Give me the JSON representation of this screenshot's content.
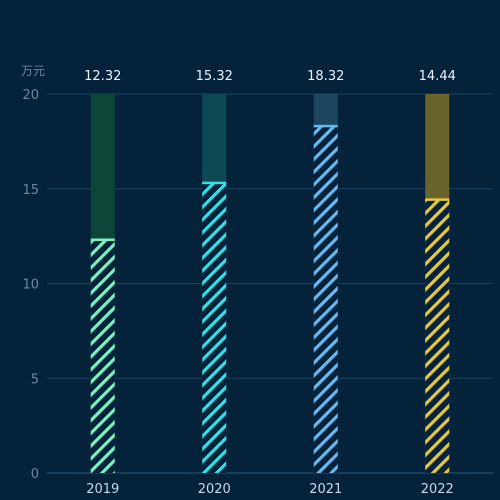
{
  "chart_data": {
    "type": "bar",
    "title": "",
    "xlabel": "",
    "ylabel": "万元",
    "categories": [
      "2019",
      "2020",
      "2021",
      "2022"
    ],
    "values": [
      12.32,
      15.32,
      18.32,
      14.44
    ],
    "value_labels": [
      "12.32",
      "15.32",
      "18.32",
      "14.44"
    ],
    "ylim": [
      0,
      20
    ],
    "yticks": [
      0,
      5,
      10,
      15,
      20
    ],
    "grid": true,
    "legend": "none",
    "style": {
      "background": "#04223a",
      "gridColor": "#1b4261",
      "axisColor": "#2e5a7d",
      "bars": [
        {
          "fill": "#7cf0c0",
          "track": "#0d4538"
        },
        {
          "fill": "#34e0e6",
          "track": "#0d4954"
        },
        {
          "fill": "#6ab8ef",
          "track": "#1c4560"
        },
        {
          "fill": "#e8c840",
          "track": "#68642a"
        }
      ]
    }
  }
}
